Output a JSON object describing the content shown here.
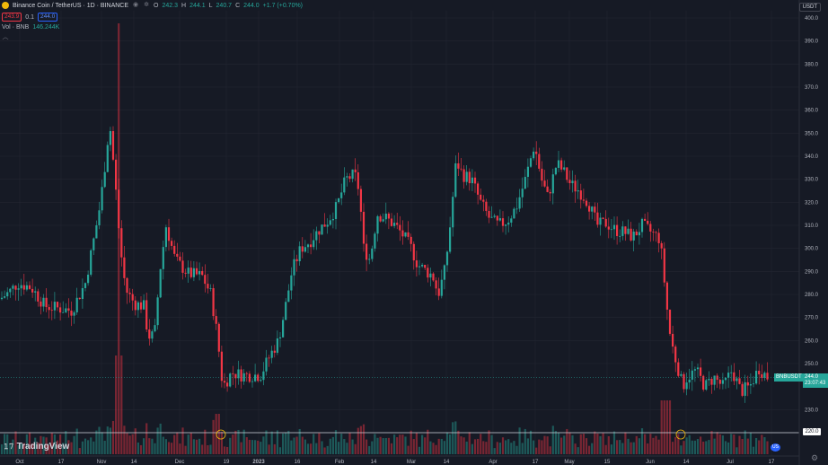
{
  "header": {
    "title": "Binance Coin / TetherUS · 1D · BINANCE",
    "ohlc": [
      {
        "k": "O",
        "v": "242.3"
      },
      {
        "k": "H",
        "v": "244.1"
      },
      {
        "k": "L",
        "v": "240.7"
      },
      {
        "k": "C",
        "v": "244.0"
      }
    ],
    "change": "+1.7 (+0.70%)",
    "sell_price": "243.9",
    "spread": "0.1",
    "buy_price": "244.0",
    "volume_label": "Vol · BNB",
    "volume_value": "146.244K",
    "currency": "USDT"
  },
  "price_axis": {
    "ticks": [
      "400.0",
      "390.0",
      "380.0",
      "370.0",
      "360.0",
      "350.0",
      "340.0",
      "330.0",
      "320.0",
      "310.0",
      "300.0",
      "290.0",
      "280.0",
      "270.0",
      "260.0",
      "250.0",
      "230.0"
    ],
    "symbol_tag": "BNBUSDT",
    "last_price": "244.0",
    "countdown": "23:07:43",
    "level_price": "220.0"
  },
  "time_axis": {
    "labels": [
      "Oct",
      "17",
      "Nov",
      "14",
      "Dec",
      "19",
      "2023",
      "16",
      "Feb",
      "14",
      "Mar",
      "14",
      "Apr",
      "17",
      "May",
      "15",
      "Jun",
      "14",
      "Jul",
      "17"
    ]
  },
  "brand": "TradingView",
  "colors": {
    "up": "#26a69a",
    "down": "#f23645",
    "bg": "#161a25",
    "grid": "#232632",
    "axis_text": "#b2b5be"
  },
  "icons": [
    "symbol-logo-icon",
    "eye-icon",
    "settings-icon",
    "collapse-icon",
    "flag-icon",
    "gear-icon"
  ],
  "chart_data": {
    "type": "candlestick",
    "series": [
      {
        "name": "BNBUSDT"
      }
    ],
    "ylim": [
      220,
      400
    ],
    "price_path": [
      [
        0,
        278
      ],
      [
        10,
        281
      ],
      [
        20,
        285
      ],
      [
        35,
        283
      ],
      [
        50,
        275
      ],
      [
        65,
        274
      ],
      [
        80,
        273
      ],
      [
        95,
        285
      ],
      [
        105,
        305
      ],
      [
        112,
        320
      ],
      [
        118,
        340
      ],
      [
        122,
        355
      ],
      [
        128,
        330
      ],
      [
        134,
        300
      ],
      [
        140,
        282
      ],
      [
        150,
        276
      ],
      [
        160,
        275
      ],
      [
        165,
        262
      ],
      [
        172,
        262
      ],
      [
        178,
        290
      ],
      [
        185,
        310
      ],
      [
        195,
        295
      ],
      [
        210,
        289
      ],
      [
        225,
        288
      ],
      [
        235,
        280
      ],
      [
        242,
        262
      ],
      [
        248,
        240
      ],
      [
        258,
        246
      ],
      [
        270,
        245
      ],
      [
        290,
        245
      ],
      [
        300,
        253
      ],
      [
        310,
        260
      ],
      [
        318,
        275
      ],
      [
        325,
        290
      ],
      [
        335,
        300
      ],
      [
        345,
        303
      ],
      [
        355,
        308
      ],
      [
        365,
        312
      ],
      [
        375,
        318
      ],
      [
        385,
        330
      ],
      [
        395,
        332
      ],
      [
        400,
        325
      ],
      [
        405,
        300
      ],
      [
        412,
        295
      ],
      [
        420,
        315
      ],
      [
        430,
        313
      ],
      [
        440,
        310
      ],
      [
        450,
        305
      ],
      [
        458,
        300
      ],
      [
        465,
        293
      ],
      [
        475,
        290
      ],
      [
        482,
        288
      ],
      [
        488,
        280
      ],
      [
        495,
        290
      ],
      [
        500,
        305
      ],
      [
        508,
        338
      ],
      [
        515,
        332
      ],
      [
        525,
        330
      ],
      [
        535,
        320
      ],
      [
        545,
        313
      ],
      [
        555,
        310
      ],
      [
        565,
        312
      ],
      [
        575,
        318
      ],
      [
        585,
        330
      ],
      [
        595,
        345
      ],
      [
        603,
        330
      ],
      [
        610,
        322
      ],
      [
        620,
        337
      ],
      [
        628,
        333
      ],
      [
        635,
        328
      ],
      [
        645,
        325
      ],
      [
        655,
        320
      ],
      [
        665,
        310
      ],
      [
        675,
        311
      ],
      [
        685,
        308
      ],
      [
        695,
        307
      ],
      [
        705,
        305
      ],
      [
        715,
        310
      ],
      [
        725,
        307
      ],
      [
        735,
        304
      ],
      [
        740,
        285
      ],
      [
        745,
        265
      ],
      [
        750,
        255
      ],
      [
        755,
        248
      ],
      [
        760,
        240
      ],
      [
        765,
        244
      ],
      [
        775,
        247
      ],
      [
        785,
        240
      ],
      [
        795,
        244
      ],
      [
        805,
        240
      ],
      [
        815,
        247
      ],
      [
        825,
        238
      ],
      [
        835,
        240
      ],
      [
        845,
        248
      ],
      [
        855,
        244
      ]
    ],
    "x_labels": [
      "Oct",
      "17",
      "Nov",
      "14",
      "Dec",
      "19",
      "2023",
      "16",
      "Feb",
      "14",
      "Mar",
      "14",
      "Apr",
      "17",
      "May",
      "15",
      "Jun",
      "14",
      "Jul",
      "17"
    ],
    "volume_label": "Vol · BNB",
    "last_volume": "146.244K",
    "last_price": 244.0,
    "horizontal_line": 220.0
  }
}
